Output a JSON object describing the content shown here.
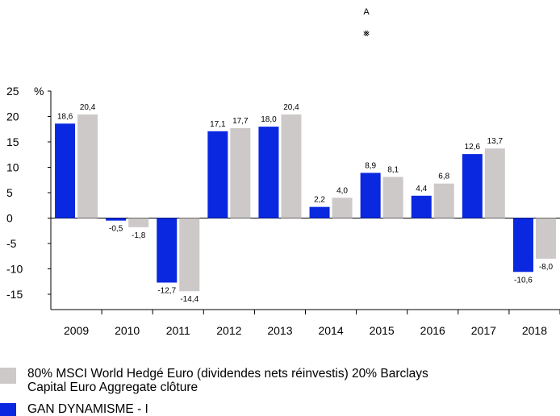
{
  "header": {
    "top_letter": "A",
    "top_glyph": "⨳"
  },
  "chart_data": {
    "type": "bar",
    "ylabel": "%",
    "ylim": [
      -15,
      25
    ],
    "yticks": [
      -15,
      -10,
      -5,
      0,
      5,
      10,
      15,
      20,
      25
    ],
    "categories": [
      "2009",
      "2010",
      "2011",
      "2012",
      "2013",
      "2014",
      "2015",
      "2016",
      "2017",
      "2018"
    ],
    "series": [
      {
        "name": "GAN DYNAMISME - I",
        "color": "#0a28e0",
        "values": [
          18.6,
          -0.5,
          -12.7,
          17.1,
          18.0,
          2.2,
          8.9,
          4.4,
          12.6,
          -10.6
        ],
        "labels": [
          "18,6",
          "-0,5",
          "-12,7",
          "17,1",
          "18,0",
          "2,2",
          "8,9",
          "4,4",
          "12,6",
          "-10,6"
        ]
      },
      {
        "name": "80% MSCI World Hedgé Euro (dividendes nets réinvestis)  20% Barclays Capital Euro Aggregate clôture",
        "color": "#cdc9c9",
        "values": [
          20.4,
          -1.8,
          -14.4,
          17.7,
          20.4,
          4.0,
          8.1,
          6.8,
          13.7,
          -8.0
        ],
        "labels": [
          "20,4",
          "-1,8",
          "-14,4",
          "17,7",
          "20,4",
          "4,0",
          "8,1",
          "6,8",
          "13,7",
          "-8,0"
        ]
      }
    ],
    "grid": false,
    "legend_position": "bottom"
  },
  "legend": {
    "items": [
      {
        "label_line1": "80% MSCI World Hedgé Euro (dividendes nets réinvestis)  20% Barclays",
        "label_line2": "Capital Euro Aggregate clôture",
        "color": "#cdc9c9"
      },
      {
        "label_line1": "GAN DYNAMISME - I",
        "label_line2": "",
        "color": "#0a28e0"
      }
    ]
  }
}
